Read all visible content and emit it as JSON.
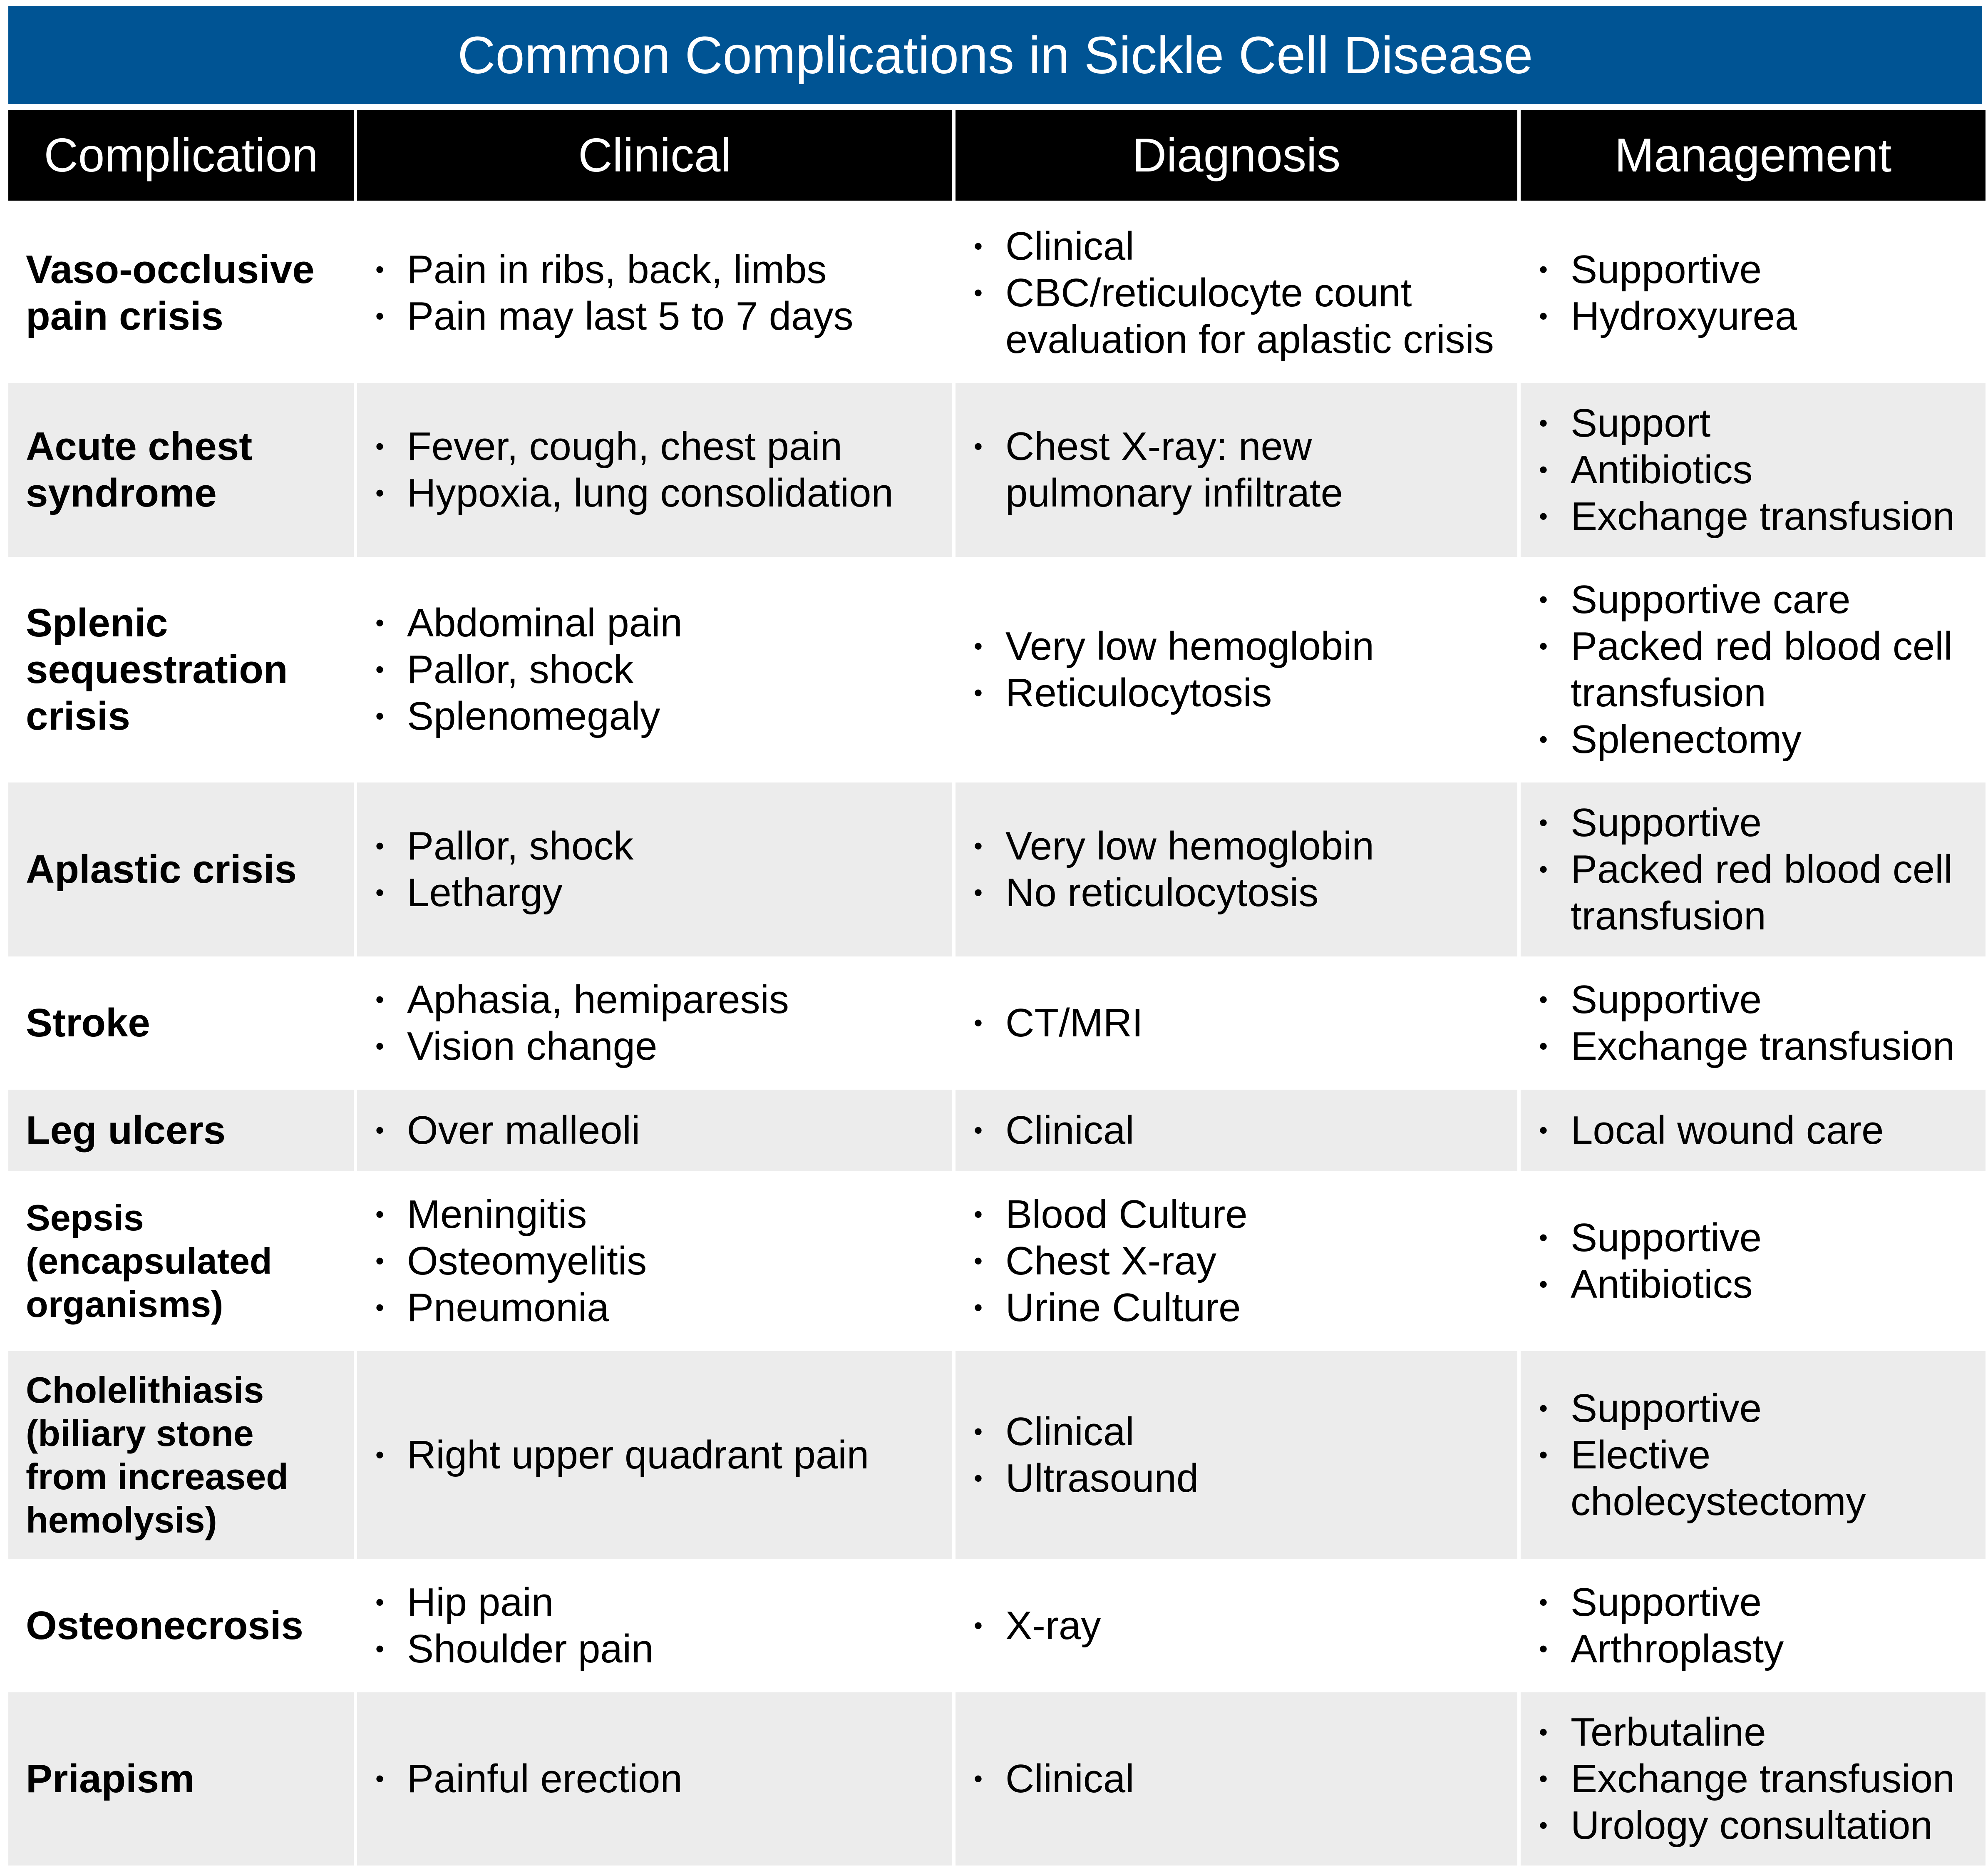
{
  "title": "Common Complications in Sickle Cell Disease",
  "colors": {
    "title_bar": "#005494",
    "header_bg": "#000000",
    "row_alt_bg": "#ececec"
  },
  "columns": [
    "Complication",
    "Clinical",
    "Diagnosis",
    "Management"
  ],
  "rows": [
    {
      "complication": "Vaso-occlusive pain crisis",
      "clinical": [
        "Pain in ribs, back, limbs",
        "Pain may last 5 to 7 days"
      ],
      "diagnosis": [
        "Clinical",
        "CBC/reticulocyte count evaluation for aplastic crisis"
      ],
      "management": [
        "Supportive",
        "Hydroxyurea"
      ]
    },
    {
      "complication": "Acute chest syndrome",
      "clinical": [
        "Fever, cough, chest pain",
        "Hypoxia, lung consolidation"
      ],
      "diagnosis": [
        "Chest X-ray: new pulmonary infiltrate"
      ],
      "management": [
        "Support",
        "Antibiotics",
        "Exchange transfusion"
      ]
    },
    {
      "complication": "Splenic sequestration crisis",
      "clinical": [
        "Abdominal pain",
        "Pallor, shock",
        "Splenomegaly"
      ],
      "diagnosis": [
        "Very low hemoglobin",
        "Reticulocytosis"
      ],
      "management": [
        "Supportive care",
        "Packed red blood cell transfusion",
        "Splenectomy"
      ]
    },
    {
      "complication": "Aplastic crisis",
      "clinical": [
        "Pallor, shock",
        "Lethargy"
      ],
      "diagnosis": [
        "Very low hemoglobin",
        "No reticulocytosis"
      ],
      "management": [
        "Supportive",
        "Packed red blood cell transfusion"
      ]
    },
    {
      "complication": "Stroke",
      "clinical": [
        "Aphasia, hemiparesis",
        "Vision change"
      ],
      "diagnosis": [
        "CT/MRI"
      ],
      "management": [
        "Supportive",
        "Exchange transfusion"
      ]
    },
    {
      "complication": "Leg ulcers",
      "clinical": [
        "Over malleoli"
      ],
      "diagnosis": [
        "Clinical"
      ],
      "management": [
        "Local wound care"
      ]
    },
    {
      "complication": "Sepsis (encapsulated organisms)",
      "clinical": [
        "Meningitis",
        "Osteomyelitis",
        "Pneumonia"
      ],
      "diagnosis": [
        "Blood Culture",
        "Chest X-ray",
        "Urine Culture"
      ],
      "management": [
        "Supportive",
        "Antibiotics"
      ]
    },
    {
      "complication": "Cholelithiasis (biliary stone from increased hemolysis)",
      "clinical": [
        "Right upper quadrant pain"
      ],
      "diagnosis": [
        "Clinical",
        "Ultrasound"
      ],
      "management": [
        "Supportive",
        "Elective cholecystectomy"
      ]
    },
    {
      "complication": "Osteonecrosis",
      "clinical": [
        "Hip pain",
        "Shoulder pain"
      ],
      "diagnosis": [
        "X-ray"
      ],
      "management": [
        "Supportive",
        "Arthroplasty"
      ]
    },
    {
      "complication": "Priapism",
      "clinical": [
        "Painful erection"
      ],
      "diagnosis": [
        "Clinical"
      ],
      "management": [
        "Terbutaline",
        "Exchange transfusion",
        "Urology consultation"
      ]
    }
  ]
}
